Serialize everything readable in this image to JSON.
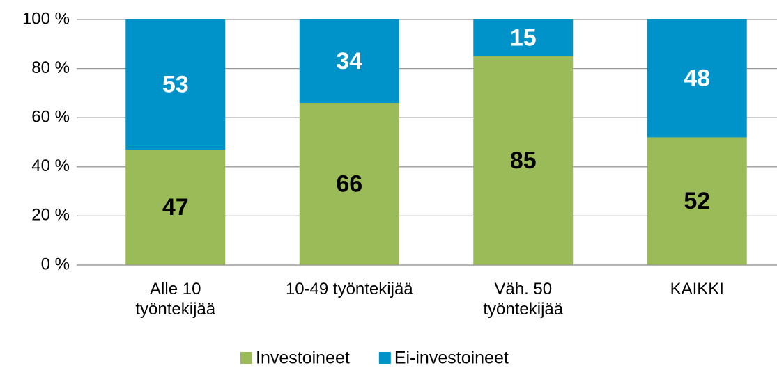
{
  "chart_data": {
    "type": "stacked_bar",
    "categories": [
      "Alle 10\ntyöntekijää",
      "10-49 työntekijää",
      "Väh. 50\ntyöntekijää",
      "KAIKKI"
    ],
    "series": [
      {
        "name": "Investoineet",
        "color": "#9bbb59",
        "values": [
          47,
          66,
          85,
          52
        ]
      },
      {
        "name": "Ei-investoineet",
        "color": "#0093c9",
        "values": [
          53,
          34,
          15,
          48
        ]
      }
    ],
    "ylim": [
      0,
      100
    ],
    "yticks": [
      {
        "value": 0,
        "label": "0 %"
      },
      {
        "value": 20,
        "label": "20 %"
      },
      {
        "value": 40,
        "label": "40 %"
      },
      {
        "value": 60,
        "label": "60 %"
      },
      {
        "value": 80,
        "label": "80 %"
      },
      {
        "value": 100,
        "label": "100 %"
      }
    ],
    "grid": true,
    "legend": "bottom"
  }
}
